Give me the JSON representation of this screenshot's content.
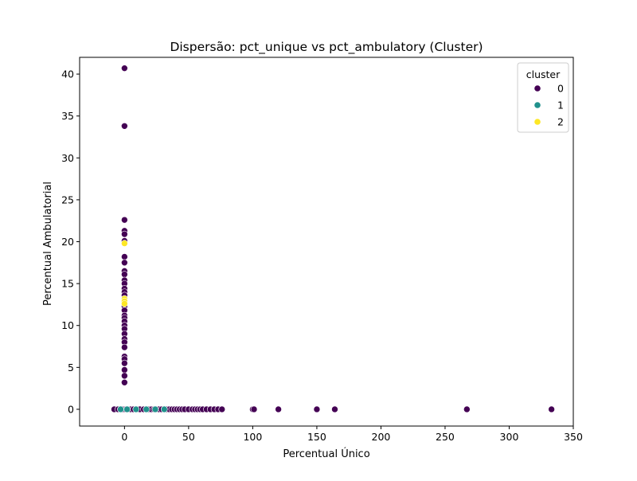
{
  "chart_data": {
    "type": "scatter",
    "title": "Dispersão: pct_unique vs pct_ambulatory (Cluster)",
    "xlabel": "Percentual Único",
    "ylabel": "Percentual Ambulatorial",
    "xlim": [
      -35,
      350
    ],
    "ylim": [
      -2,
      42
    ],
    "xticks": [
      0,
      50,
      100,
      150,
      200,
      250,
      300,
      350
    ],
    "yticks": [
      0,
      5,
      10,
      15,
      20,
      25,
      30,
      35,
      40
    ],
    "grid": false,
    "legend": {
      "title": "cluster",
      "position": "top-right",
      "entries": [
        {
          "label": "0",
          "color": "#440154"
        },
        {
          "label": "1",
          "color": "#21918c"
        },
        {
          "label": "2",
          "color": "#fde725"
        }
      ]
    },
    "series": [
      {
        "name": "0",
        "color": "#440154",
        "points": [
          [
            0,
            40.7
          ],
          [
            0,
            33.8
          ],
          [
            0,
            22.6
          ],
          [
            0,
            21.3
          ],
          [
            0,
            20.9
          ],
          [
            0,
            20.1
          ],
          [
            0,
            18.2
          ],
          [
            0,
            17.5
          ],
          [
            0,
            16.5
          ],
          [
            0,
            16.1
          ],
          [
            0,
            15.4
          ],
          [
            0,
            15.0
          ],
          [
            0,
            14.4
          ],
          [
            0,
            14.0
          ],
          [
            0,
            13.6
          ],
          [
            0,
            12.8
          ],
          [
            0,
            12.3
          ],
          [
            0,
            11.8
          ],
          [
            0,
            11.2
          ],
          [
            0,
            10.9
          ],
          [
            0,
            10.5
          ],
          [
            0,
            10.0
          ],
          [
            0,
            9.6
          ],
          [
            0,
            9.0
          ],
          [
            0,
            8.4
          ],
          [
            0,
            8.0
          ],
          [
            0,
            7.4
          ],
          [
            0,
            6.3
          ],
          [
            0,
            6.0
          ],
          [
            0,
            5.5
          ],
          [
            0,
            4.7
          ],
          [
            0,
            4.0
          ],
          [
            0,
            3.2
          ],
          [
            -8,
            0
          ],
          [
            -5,
            0
          ],
          [
            -3,
            0
          ],
          [
            -1,
            0
          ],
          [
            1,
            0
          ],
          [
            3,
            0
          ],
          [
            5,
            0
          ],
          [
            7,
            0
          ],
          [
            9,
            0
          ],
          [
            10,
            0
          ],
          [
            12,
            0
          ],
          [
            15,
            0
          ],
          [
            17,
            0
          ],
          [
            19,
            0
          ],
          [
            21,
            0
          ],
          [
            23,
            0
          ],
          [
            25,
            0
          ],
          [
            27,
            0
          ],
          [
            29,
            0
          ],
          [
            31,
            0
          ],
          [
            33,
            0
          ],
          [
            35,
            0
          ],
          [
            37,
            0
          ],
          [
            39,
            0
          ],
          [
            41,
            0
          ],
          [
            43,
            0
          ],
          [
            45,
            0
          ],
          [
            47,
            0
          ],
          [
            50,
            0
          ],
          [
            53,
            0
          ],
          [
            55,
            0
          ],
          [
            57,
            0
          ],
          [
            59,
            0
          ],
          [
            61,
            0
          ],
          [
            64,
            0
          ],
          [
            67,
            0
          ],
          [
            70,
            0
          ],
          [
            73,
            0
          ],
          [
            76,
            0
          ],
          [
            100,
            0
          ],
          [
            101,
            0
          ],
          [
            120,
            0
          ],
          [
            150,
            0
          ],
          [
            164,
            0
          ],
          [
            267,
            0
          ],
          [
            333,
            0
          ]
        ]
      },
      {
        "name": "1",
        "color": "#21918c",
        "points": [
          [
            -3,
            0
          ],
          [
            2,
            0
          ],
          [
            9,
            0
          ],
          [
            17,
            0
          ],
          [
            24,
            0
          ],
          [
            31,
            0
          ]
        ]
      },
      {
        "name": "2",
        "color": "#fde725",
        "points": [
          [
            0,
            19.8
          ],
          [
            0,
            13.2
          ],
          [
            0,
            12.9
          ],
          [
            0,
            12.6
          ]
        ]
      }
    ]
  }
}
